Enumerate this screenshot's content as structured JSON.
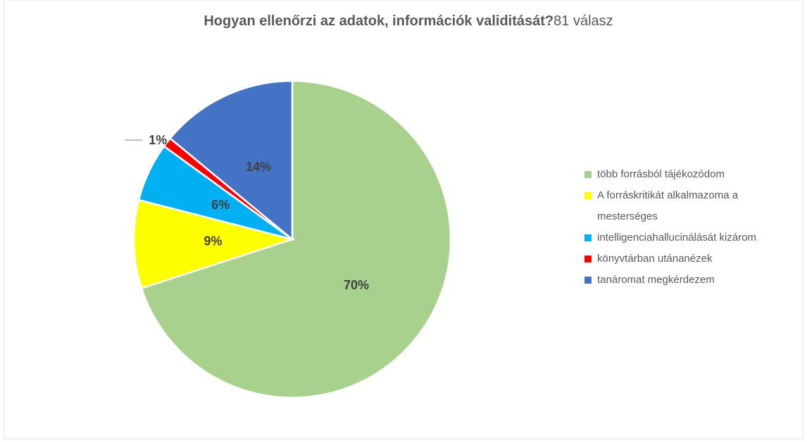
{
  "chart_data": {
    "type": "pie",
    "title": "Hogyan ellenőrzi az adatok, információk validitását?",
    "subtitle": "81 válasz",
    "categories": [
      "több forrásból tájékozódom",
      "A forráskritikát alkalmazoma a mesterséges",
      "intelligenciahallucinálását kizárom",
      "könyvtárban utánanézek",
      "tanáromat megkérdezem"
    ],
    "values": [
      70,
      9,
      6,
      1,
      14
    ],
    "value_labels": [
      "70%",
      "9%",
      "6%",
      "1%",
      "14%"
    ],
    "colors": [
      "#a9d18e",
      "#ffff00",
      "#00b0f0",
      "#ff0000",
      "#4472c4"
    ],
    "legend": "right"
  }
}
